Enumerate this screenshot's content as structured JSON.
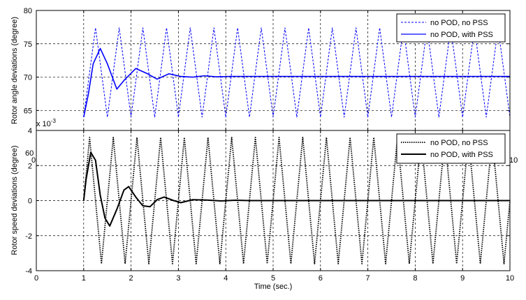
{
  "chart_data": [
    {
      "type": "line",
      "title": "",
      "xlabel": "",
      "ylabel": "Rotor angle deviations (degree)",
      "xlim": [
        0,
        10
      ],
      "ylim": [
        62,
        80
      ],
      "grid": true,
      "legend_placement": "top-right",
      "x_ticks": [
        "0",
        "1",
        "2",
        "3",
        "4",
        "5",
        "6",
        "7",
        "8",
        "9",
        "10"
      ],
      "y_ticks": [
        "65",
        "70",
        "75",
        "80"
      ],
      "series": [
        {
          "name": "no POD, no PSS",
          "style": "dashed",
          "color": "#0000ff",
          "points": [
            [
              1.0,
              64.0
            ],
            [
              1.25,
              77.4
            ],
            [
              1.5,
              64.0
            ],
            [
              1.75,
              77.4
            ],
            [
              2.0,
              64.0
            ],
            [
              2.25,
              77.4
            ],
            [
              2.5,
              64.0
            ],
            [
              2.75,
              77.4
            ],
            [
              3.0,
              64.0
            ],
            [
              3.25,
              77.4
            ],
            [
              3.5,
              64.0
            ],
            [
              3.75,
              77.4
            ],
            [
              4.0,
              64.0
            ],
            [
              4.25,
              77.4
            ],
            [
              4.5,
              64.0
            ],
            [
              4.75,
              77.4
            ],
            [
              5.0,
              64.0
            ],
            [
              5.25,
              77.4
            ],
            [
              5.5,
              64.0
            ],
            [
              5.75,
              77.4
            ],
            [
              6.0,
              64.0
            ],
            [
              6.25,
              77.4
            ],
            [
              6.5,
              64.0
            ],
            [
              6.75,
              77.4
            ],
            [
              7.0,
              64.0
            ],
            [
              7.25,
              77.4
            ],
            [
              7.5,
              64.0
            ],
            [
              7.75,
              77.4
            ],
            [
              8.0,
              64.0
            ],
            [
              8.25,
              77.4
            ],
            [
              8.5,
              64.0
            ],
            [
              8.75,
              77.4
            ],
            [
              9.0,
              64.0
            ],
            [
              9.25,
              77.4
            ],
            [
              9.5,
              64.0
            ],
            [
              9.75,
              77.4
            ],
            [
              10.0,
              64.0
            ]
          ]
        },
        {
          "name": "no POD, with PSS",
          "style": "solid",
          "color": "#0000ff",
          "points": [
            [
              1.0,
              64.0
            ],
            [
              1.1,
              67.5
            ],
            [
              1.2,
              72.0
            ],
            [
              1.35,
              74.3
            ],
            [
              1.5,
              72.0
            ],
            [
              1.7,
              68.2
            ],
            [
              1.85,
              69.5
            ],
            [
              2.1,
              71.3
            ],
            [
              2.35,
              70.5
            ],
            [
              2.55,
              69.7
            ],
            [
              2.8,
              70.5
            ],
            [
              3.05,
              70.1
            ],
            [
              3.3,
              70.0
            ],
            [
              3.55,
              70.2
            ],
            [
              3.8,
              70.05
            ],
            [
              4.1,
              70.1
            ],
            [
              5.0,
              70.1
            ],
            [
              6.0,
              70.1
            ],
            [
              7.0,
              70.1
            ],
            [
              8.0,
              70.1
            ],
            [
              9.0,
              70.1
            ],
            [
              10.0,
              70.1
            ]
          ]
        }
      ]
    },
    {
      "type": "line",
      "title": "",
      "xlabel": "Time (sec.)",
      "ylabel": "Rotor speed deviations (degree)",
      "axis_exponent": "x 10",
      "axis_exponent_power": "-3",
      "xlim": [
        0,
        10
      ],
      "ylim": [
        -4,
        4
      ],
      "grid": true,
      "legend_placement": "top-right",
      "x_ticks": [
        "0",
        "1",
        "2",
        "3",
        "4",
        "5",
        "6",
        "7",
        "8",
        "9",
        "10"
      ],
      "y_ticks": [
        "-4",
        "-2",
        "0",
        "2",
        "4"
      ],
      "series": [
        {
          "name": "no POD, no PSS",
          "style": "dotted",
          "color": "#000000",
          "points": [
            [
              1.0,
              0.0
            ],
            [
              1.125,
              3.6
            ],
            [
              1.375,
              -3.6
            ],
            [
              1.625,
              3.6
            ],
            [
              1.875,
              -3.6
            ],
            [
              2.125,
              3.6
            ],
            [
              2.375,
              -3.6
            ],
            [
              2.625,
              3.6
            ],
            [
              2.875,
              -3.6
            ],
            [
              3.125,
              3.6
            ],
            [
              3.375,
              -3.6
            ],
            [
              3.625,
              3.6
            ],
            [
              3.875,
              -3.6
            ],
            [
              4.125,
              3.6
            ],
            [
              4.375,
              -3.6
            ],
            [
              4.625,
              3.6
            ],
            [
              4.875,
              -3.6
            ],
            [
              5.125,
              3.6
            ],
            [
              5.375,
              -3.6
            ],
            [
              5.625,
              3.6
            ],
            [
              5.875,
              -3.6
            ],
            [
              6.125,
              3.6
            ],
            [
              6.375,
              -3.6
            ],
            [
              6.625,
              3.6
            ],
            [
              6.875,
              -3.6
            ],
            [
              7.125,
              3.6
            ],
            [
              7.375,
              -3.6
            ],
            [
              7.625,
              3.6
            ],
            [
              7.875,
              -3.6
            ],
            [
              8.125,
              3.6
            ],
            [
              8.375,
              -3.6
            ],
            [
              8.625,
              3.6
            ],
            [
              8.875,
              -3.6
            ],
            [
              9.125,
              3.6
            ],
            [
              9.375,
              -3.6
            ],
            [
              9.625,
              3.6
            ],
            [
              9.875,
              -3.6
            ],
            [
              10.0,
              0.0
            ]
          ]
        },
        {
          "name": "no POD, with PSS",
          "style": "solid",
          "color": "#000000",
          "points": [
            [
              1.0,
              0.0
            ],
            [
              1.05,
              1.2
            ],
            [
              1.15,
              2.75
            ],
            [
              1.25,
              2.3
            ],
            [
              1.35,
              0.3
            ],
            [
              1.45,
              -1.0
            ],
            [
              1.55,
              -1.45
            ],
            [
              1.7,
              -0.5
            ],
            [
              1.85,
              0.6
            ],
            [
              1.95,
              0.8
            ],
            [
              2.1,
              0.2
            ],
            [
              2.25,
              -0.3
            ],
            [
              2.4,
              -0.35
            ],
            [
              2.55,
              0.05
            ],
            [
              2.7,
              0.2
            ],
            [
              2.9,
              0.0
            ],
            [
              3.05,
              -0.12
            ],
            [
              3.3,
              0.05
            ],
            [
              3.6,
              0.03
            ],
            [
              3.9,
              -0.02
            ],
            [
              4.2,
              0.02
            ],
            [
              4.5,
              0.0
            ],
            [
              5.0,
              0.0
            ],
            [
              6.0,
              0.0
            ],
            [
              7.0,
              0.0
            ],
            [
              8.0,
              0.0
            ],
            [
              9.0,
              0.0
            ],
            [
              10.0,
              0.0
            ]
          ]
        }
      ]
    }
  ],
  "clipped_labels": {
    "bottom_tick_60": "60",
    "right_tick_10": "10",
    "left_tick_0": "0"
  }
}
